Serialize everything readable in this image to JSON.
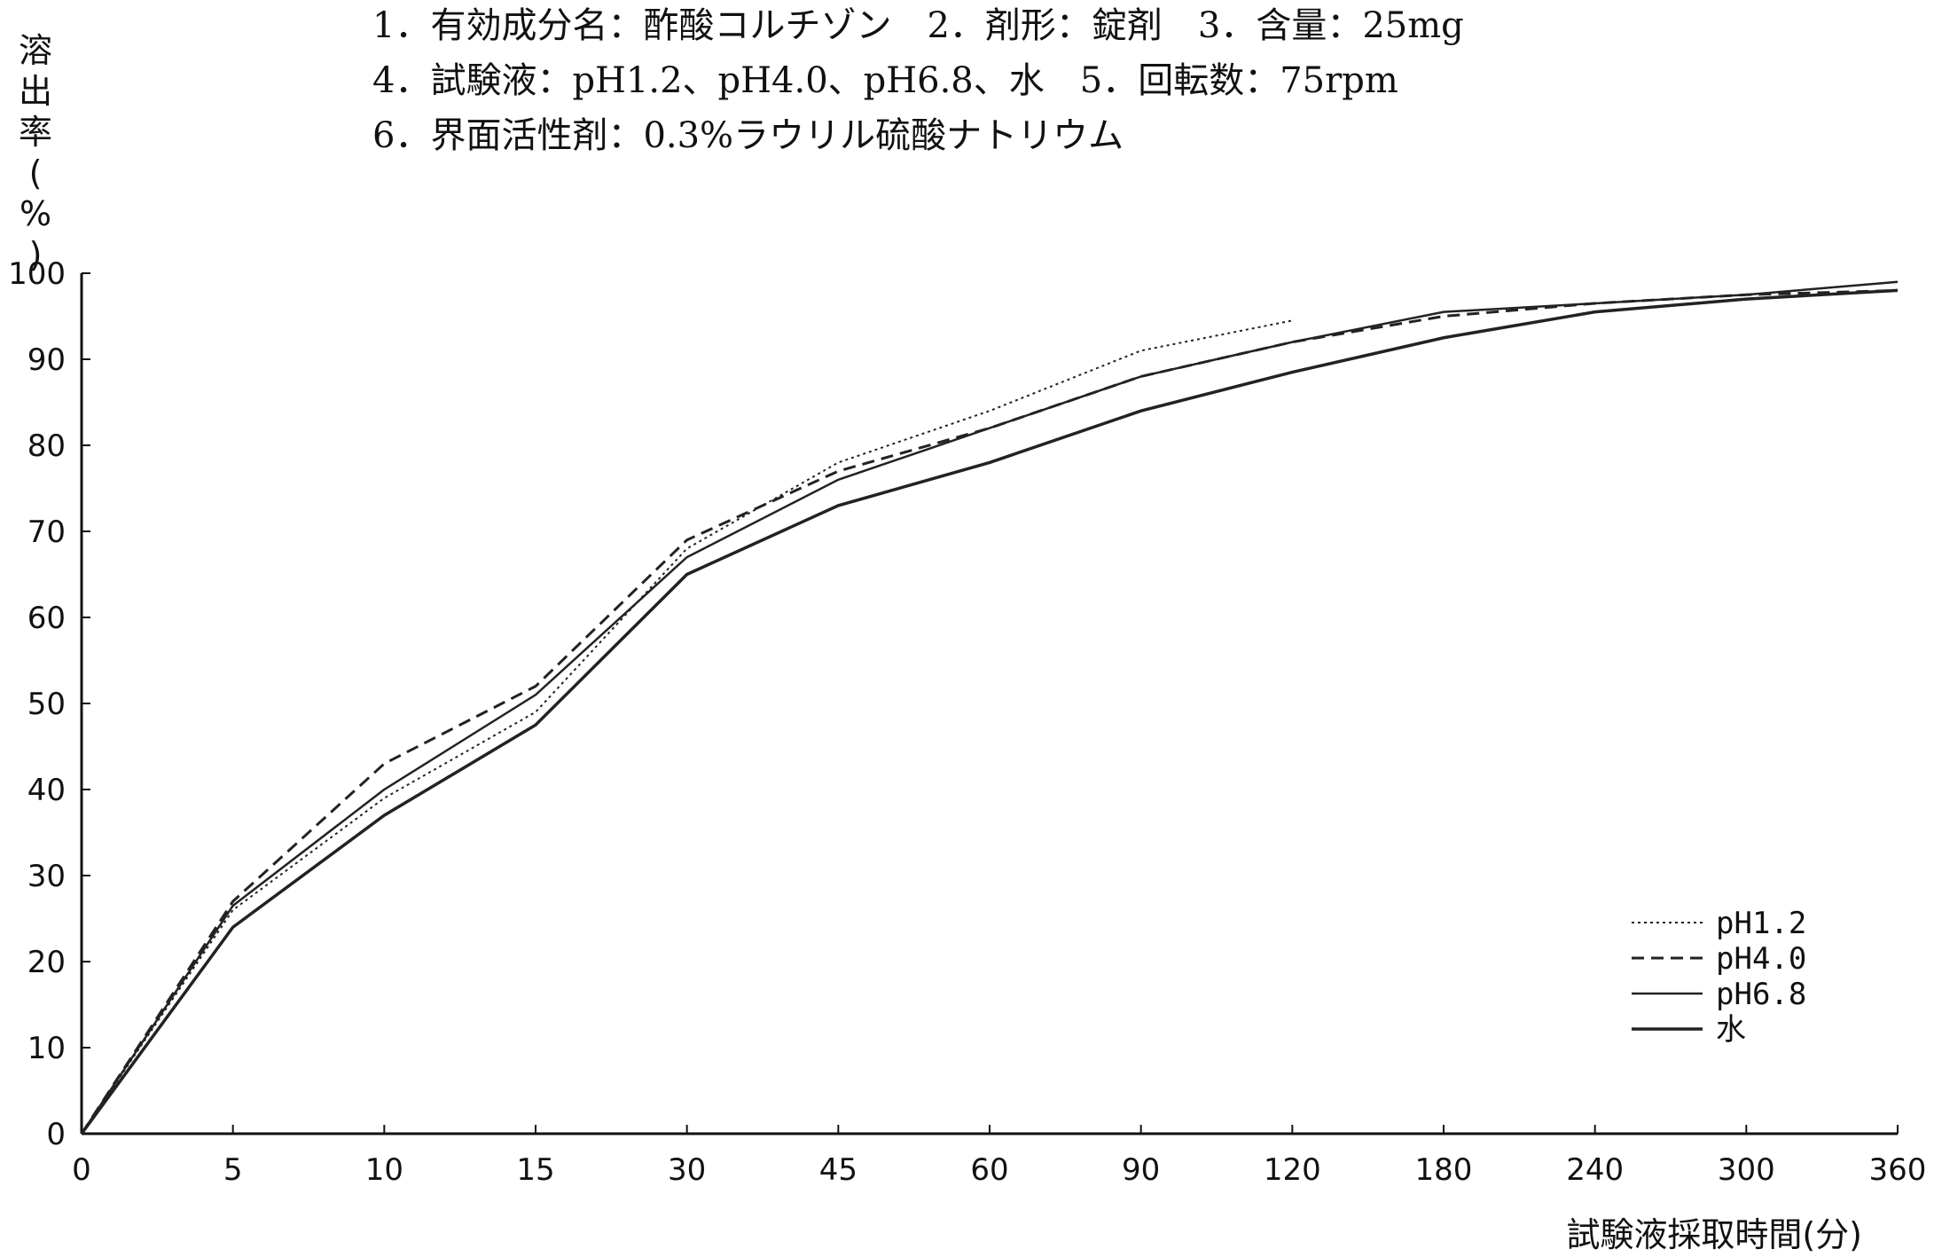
{
  "header": {
    "lines": [
      "1．有効成分名：酢酸コルチゾン　2．剤形：錠剤　3．含量：25mg",
      "4．試験液：pH1.2、pH4.0、pH6.8、水　5．回転数：75rpm",
      "6．界面活性剤：0.3%ラウリル硫酸ナトリウム"
    ]
  },
  "chart_data": {
    "type": "line",
    "title": "",
    "xlabel": "試験液採取時間(分)",
    "ylabel": "溶出率(%)",
    "categories": [
      "0",
      "5",
      "10",
      "15",
      "30",
      "45",
      "60",
      "90",
      "120",
      "180",
      "240",
      "300",
      "360"
    ],
    "ylim": [
      0,
      100
    ],
    "yticks": [
      "0",
      "10",
      "20",
      "30",
      "40",
      "50",
      "60",
      "70",
      "80",
      "90",
      "100"
    ],
    "grid": false,
    "legend_position": "bottom-right",
    "series": [
      {
        "name": "pH1.2",
        "style": "dotted",
        "color": "#222222",
        "values": [
          0,
          26,
          39,
          49,
          68,
          78,
          84,
          91,
          94.5,
          null,
          null,
          null,
          null
        ]
      },
      {
        "name": "pH4.0",
        "style": "dashed",
        "color": "#222222",
        "values": [
          0,
          27,
          43,
          52,
          69,
          77,
          82,
          88,
          92,
          95,
          96.5,
          97.5,
          98
        ]
      },
      {
        "name": "pH6.8",
        "style": "solid",
        "color": "#222222",
        "values": [
          0,
          26.5,
          40,
          51,
          67,
          76,
          82,
          88,
          92,
          95.5,
          96.5,
          97.5,
          99
        ]
      },
      {
        "name": "水",
        "style": "solid-thick",
        "color": "#222222",
        "values": [
          0,
          24,
          37,
          47.5,
          65,
          73,
          78,
          84,
          88.5,
          92.5,
          95.5,
          97,
          98
        ]
      }
    ]
  }
}
